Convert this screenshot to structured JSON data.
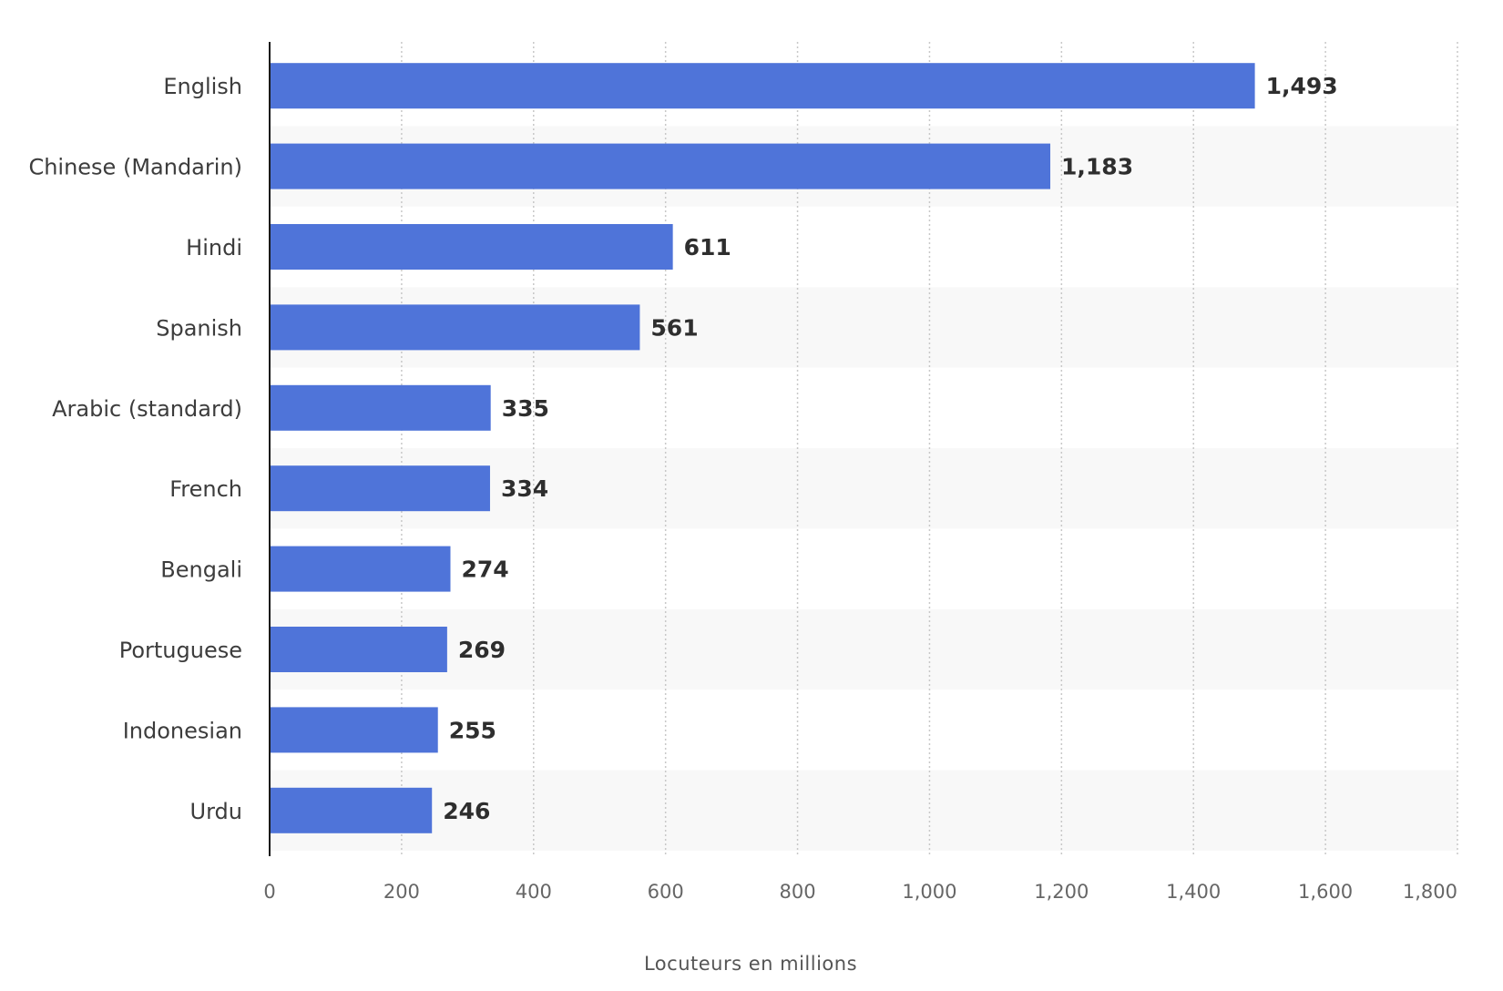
{
  "chart_data": {
    "type": "bar",
    "orientation": "horizontal",
    "categories": [
      "English",
      "Chinese (Mandarin)",
      "Hindi",
      "Spanish",
      "Arabic (standard)",
      "French",
      "Bengali",
      "Portuguese",
      "Indonesian",
      "Urdu"
    ],
    "values": [
      1493,
      1183,
      611,
      561,
      335,
      334,
      274,
      269,
      255,
      246
    ],
    "value_labels": [
      "1,493",
      "1,183",
      "611",
      "561",
      "335",
      "334",
      "274",
      "269",
      "255",
      "246"
    ],
    "xlabel": "Locuteurs en millions",
    "xlim": [
      0,
      1800
    ],
    "xticks": [
      0,
      200,
      400,
      600,
      800,
      1000,
      1200,
      1400,
      1600,
      1800
    ],
    "xtick_labels": [
      "0",
      "200",
      "400",
      "600",
      "800",
      "1,000",
      "1,200",
      "1,400",
      "1,600",
      "1,800"
    ],
    "grid": "vertical dotted",
    "alternating_row_shading": true,
    "legend": "none"
  },
  "colors": {
    "bar": "#4f74d9",
    "row_shade": "#f8f8f8",
    "grid": "#c8c8c8",
    "axis": "#1a1a1a"
  }
}
